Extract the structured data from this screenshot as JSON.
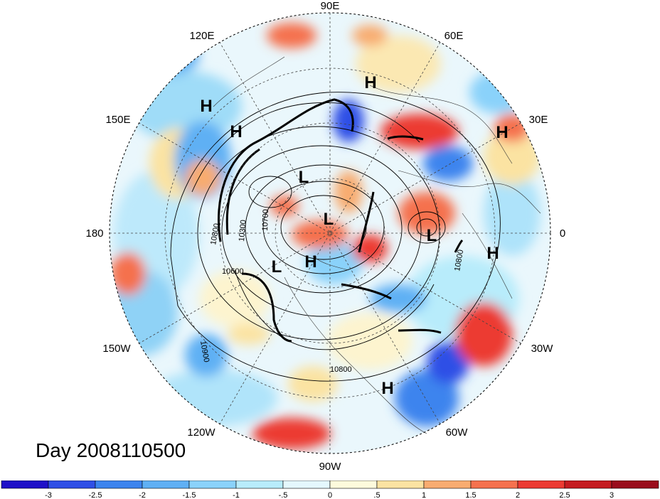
{
  "title": "Day 2008110500",
  "longitude_labels": {
    "n90e": "90E",
    "n60e": "60E",
    "n30e": "30E",
    "n0": "0",
    "n30w": "30W",
    "n60w": "60W",
    "n90w": "90W",
    "n120w": "120W",
    "n150w": "150W",
    "n180": "180",
    "n150e": "150E",
    "n120e": "120E"
  },
  "pressure_centers": [
    {
      "label": "H"
    },
    {
      "label": "H"
    },
    {
      "label": "H"
    },
    {
      "label": "H"
    },
    {
      "label": "H"
    },
    {
      "label": "H"
    },
    {
      "label": "H"
    },
    {
      "label": "L"
    },
    {
      "label": "L"
    },
    {
      "label": "L"
    },
    {
      "label": "L"
    }
  ],
  "contour_labels": [
    "10800",
    "10300",
    "10600",
    "10700",
    "10900",
    "10800",
    "10800"
  ],
  "colorbar": {
    "ticks": [
      "-3",
      "-2.5",
      "-2",
      "-1.5",
      "-1",
      "-.5",
      "0",
      ".5",
      "1",
      "1.5",
      "2",
      "2.5",
      "3"
    ],
    "colors": [
      "#1e10c8",
      "#2f4fe6",
      "#3c84ee",
      "#5fb0f4",
      "#8ad2fa",
      "#b8ecfb",
      "#e4f7fd",
      "#fdfadc",
      "#fbe3a2",
      "#f8ac70",
      "#f5714e",
      "#ec3a32",
      "#c51b20",
      "#9a0c1c"
    ]
  }
}
